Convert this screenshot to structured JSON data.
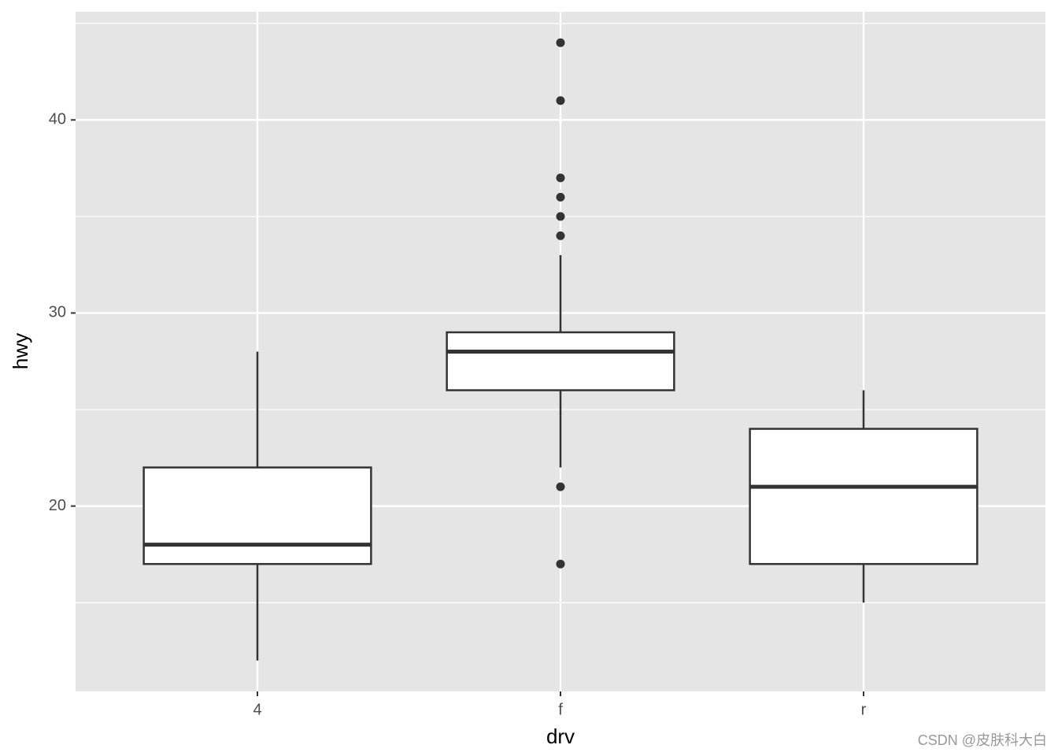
{
  "chart_data": {
    "type": "box",
    "x_label": "drv",
    "y_label": "hwy",
    "categories": [
      "4",
      "f",
      "r"
    ],
    "boxes": [
      {
        "lower": 12,
        "q1": 17,
        "median": 18,
        "q3": 22,
        "upper": 28
      },
      {
        "lower": 22,
        "q1": 26,
        "median": 28,
        "q3": 29,
        "upper": 33,
        "outliers": [
          44,
          41,
          37,
          36,
          35,
          34,
          21,
          17
        ]
      },
      {
        "lower": 15,
        "q1": 17,
        "median": 21,
        "q3": 24,
        "upper": 26
      }
    ],
    "ylim": [
      10.4,
      45.6
    ],
    "yticks": [
      20,
      30,
      40
    ],
    "yminorticks": [
      15,
      25,
      35,
      45
    ],
    "grid": true,
    "panel_color": "#e5e5e5",
    "box_fill": "#ffffff",
    "line_color": "#333333",
    "watermark": "CSDN @皮肤科大白"
  }
}
